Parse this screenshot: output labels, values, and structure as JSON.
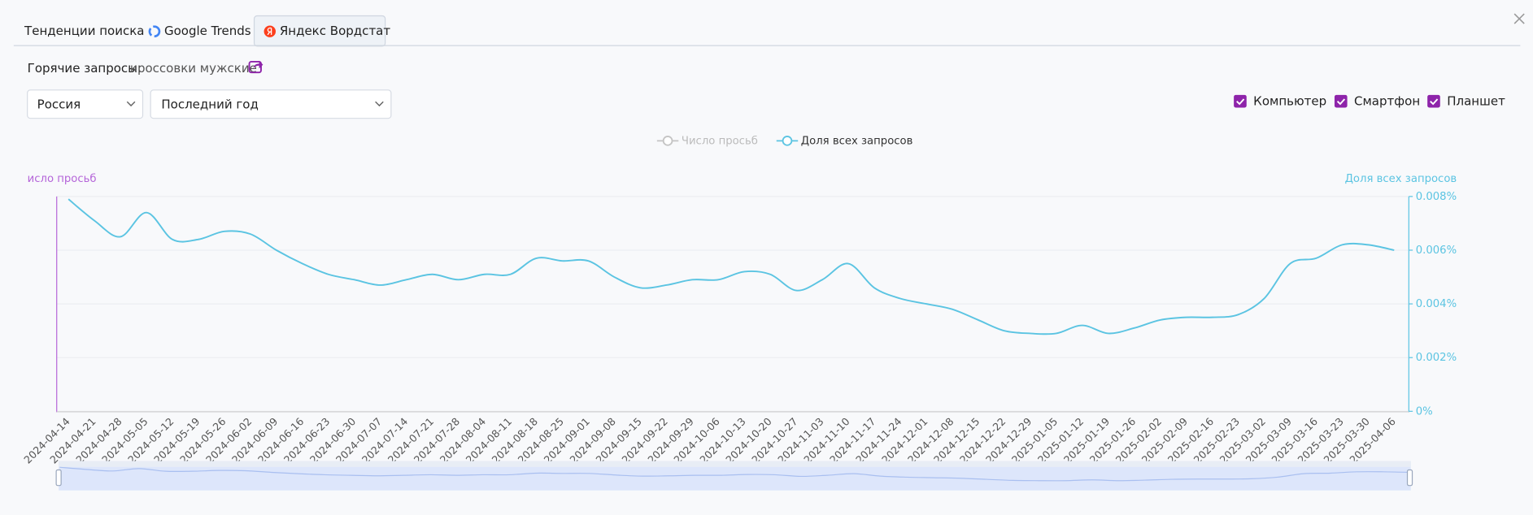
{
  "tabs": [
    "Тенденции поиска",
    "Google Trends",
    "Яндекс Вордстат"
  ],
  "hot_queries": {
    "label": "Горячие запросы:",
    "query": "кроссовки мужские"
  },
  "filters": {
    "region": "Россия",
    "period": "Последний год"
  },
  "devices": [
    "Компьютер",
    "Смартфон",
    "Планшет"
  ],
  "chart_data": {
    "type": "line",
    "ylabel": "исло просьб",
    "y2label": "Доля всех запросов",
    "categories": [
      "2024-04-14",
      "2024-04-21",
      "2024-04-28",
      "2024-05-05",
      "2024-05-12",
      "2024-05-19",
      "2024-05-26",
      "2024-06-02",
      "2024-06-09",
      "2024-06-16",
      "2024-06-23",
      "2024-06-30",
      "2024-07-07",
      "2024-07-14",
      "2024-07-21",
      "2024-07-28",
      "2024-08-04",
      "2024-08-11",
      "2024-08-18",
      "2024-08-25",
      "2024-09-01",
      "2024-09-08",
      "2024-09-15",
      "2024-09-22",
      "2024-09-29",
      "2024-10-06",
      "2024-10-13",
      "2024-10-20",
      "2024-10-27",
      "2024-11-03",
      "2024-11-10",
      "2024-11-17",
      "2024-11-24",
      "2024-12-01",
      "2024-12-08",
      "2024-12-15",
      "2024-12-22",
      "2024-12-29",
      "2025-01-05",
      "2025-01-12",
      "2025-01-19",
      "2025-01-26",
      "2025-02-02",
      "2025-02-09",
      "2025-02-16",
      "2025-02-23",
      "2025-03-02",
      "2025-03-09",
      "2025-03-16",
      "2025-03-23",
      "2025-03-30",
      "2025-04-06"
    ],
    "series": [
      {
        "name": "Число просьб",
        "color": "#c4c4c4",
        "visible": false
      },
      {
        "name": "Доля всех запросов",
        "color": "#5bc4e2",
        "visible": true,
        "axis": "y2",
        "values": [
          0.0079,
          0.0071,
          0.0065,
          0.0074,
          0.0064,
          0.0064,
          0.0067,
          0.0066,
          0.006,
          0.0055,
          0.0051,
          0.0049,
          0.0047,
          0.0049,
          0.0051,
          0.0049,
          0.0051,
          0.0051,
          0.0057,
          0.0056,
          0.0056,
          0.005,
          0.0046,
          0.0047,
          0.0049,
          0.0049,
          0.0052,
          0.0051,
          0.0045,
          0.0049,
          0.0055,
          0.0046,
          0.0042,
          0.004,
          0.0038,
          0.0034,
          0.003,
          0.0029,
          0.0029,
          0.0032,
          0.0029,
          0.0031,
          0.0034,
          0.0035,
          0.0035,
          0.0036,
          0.0042,
          0.0055,
          0.0057,
          0.0062,
          0.0062,
          0.006
        ]
      }
    ],
    "y2lim": [
      0,
      0.008
    ],
    "y2ticks": [
      {
        "value": 0,
        "label": "0%"
      },
      {
        "value": 0.002,
        "label": "0.002%"
      },
      {
        "value": 0.004,
        "label": "0.004%"
      },
      {
        "value": 0.006,
        "label": "0.006%"
      },
      {
        "value": 0.008,
        "label": "0.008%"
      }
    ],
    "grid": true
  }
}
